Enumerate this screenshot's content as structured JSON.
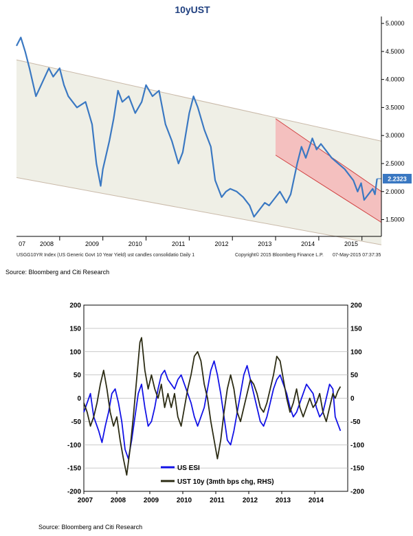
{
  "chart_data": [
    {
      "type": "line",
      "title": "10yUST",
      "y_axis_side": "right",
      "ylim": [
        1.2,
        5.05
      ],
      "yticks": [
        "5.0000",
        "4.5000",
        "4.0000",
        "3.5000",
        "3.0000",
        "2.5000",
        "2.0000",
        "1.5000"
      ],
      "ytick_values": [
        5.0,
        4.5,
        4.0,
        3.5,
        3.0,
        2.5,
        2.0,
        1.5
      ],
      "xlim": [
        2007.0,
        2015.45
      ],
      "xticks": [
        "07",
        "2008",
        "2009",
        "2010",
        "2011",
        "2012",
        "2013",
        "2014",
        "2015"
      ],
      "xtick_values": [
        2007.05,
        2007.7,
        2008.75,
        2009.75,
        2010.75,
        2011.75,
        2012.75,
        2013.75,
        2014.75
      ],
      "last_value_label": "2.2323",
      "series": [
        {
          "values": [
            [
              2007.0,
              4.6
            ],
            [
              2007.1,
              4.75
            ],
            [
              2007.2,
              4.5
            ],
            [
              2007.3,
              4.2
            ],
            [
              2007.45,
              3.7
            ],
            [
              2007.6,
              3.95
            ],
            [
              2007.75,
              4.2
            ],
            [
              2007.85,
              4.05
            ],
            [
              2008.0,
              4.2
            ],
            [
              2008.1,
              3.9
            ],
            [
              2008.2,
              3.7
            ],
            [
              2008.4,
              3.5
            ],
            [
              2008.6,
              3.6
            ],
            [
              2008.75,
              3.2
            ],
            [
              2008.85,
              2.5
            ],
            [
              2008.95,
              2.1
            ],
            [
              2009.0,
              2.4
            ],
            [
              2009.15,
              2.9
            ],
            [
              2009.25,
              3.3
            ],
            [
              2009.35,
              3.8
            ],
            [
              2009.45,
              3.6
            ],
            [
              2009.6,
              3.7
            ],
            [
              2009.75,
              3.4
            ],
            [
              2009.9,
              3.6
            ],
            [
              2010.0,
              3.9
            ],
            [
              2010.15,
              3.7
            ],
            [
              2010.3,
              3.8
            ],
            [
              2010.45,
              3.2
            ],
            [
              2010.6,
              2.9
            ],
            [
              2010.75,
              2.5
            ],
            [
              2010.85,
              2.7
            ],
            [
              2011.0,
              3.4
            ],
            [
              2011.1,
              3.7
            ],
            [
              2011.2,
              3.5
            ],
            [
              2011.35,
              3.1
            ],
            [
              2011.5,
              2.8
            ],
            [
              2011.6,
              2.2
            ],
            [
              2011.75,
              1.9
            ],
            [
              2011.85,
              2.0
            ],
            [
              2011.95,
              2.05
            ],
            [
              2012.1,
              2.0
            ],
            [
              2012.25,
              1.9
            ],
            [
              2012.4,
              1.75
            ],
            [
              2012.5,
              1.55
            ],
            [
              2012.6,
              1.65
            ],
            [
              2012.75,
              1.8
            ],
            [
              2012.85,
              1.75
            ],
            [
              2012.95,
              1.85
            ],
            [
              2013.1,
              2.0
            ],
            [
              2013.25,
              1.8
            ],
            [
              2013.35,
              1.95
            ],
            [
              2013.5,
              2.5
            ],
            [
              2013.6,
              2.8
            ],
            [
              2013.7,
              2.6
            ],
            [
              2013.85,
              2.95
            ],
            [
              2013.95,
              2.75
            ],
            [
              2014.05,
              2.85
            ],
            [
              2014.15,
              2.75
            ],
            [
              2014.3,
              2.6
            ],
            [
              2014.45,
              2.5
            ],
            [
              2014.6,
              2.4
            ],
            [
              2014.7,
              2.3
            ],
            [
              2014.8,
              2.2
            ],
            [
              2014.9,
              2.0
            ],
            [
              2014.98,
              2.15
            ],
            [
              2015.05,
              1.85
            ],
            [
              2015.15,
              1.95
            ],
            [
              2015.25,
              2.05
            ],
            [
              2015.3,
              1.95
            ],
            [
              2015.35,
              2.23
            ]
          ]
        }
      ],
      "channels": [
        {
          "upper": [
            [
              2007.0,
              4.35
            ],
            [
              2015.45,
              2.9
            ]
          ],
          "lower": [
            [
              2007.0,
              2.25
            ],
            [
              2015.45,
              1.05
            ]
          ],
          "color": "#efefe6"
        },
        {
          "upper": [
            [
              2013.0,
              3.3
            ],
            [
              2015.45,
              2.0
            ]
          ],
          "lower": [
            [
              2013.0,
              2.65
            ],
            [
              2015.45,
              1.45
            ]
          ],
          "color": "#f4b7b7"
        }
      ],
      "footer_left": "USGG10YR Index (US Generic Govt 10 Year Yield) ust candles consolidatio  Daily 1",
      "footer_mid": "Copyright© 2015 Bloomberg Finance L.P.",
      "footer_right": "07-May-2015 07:37:35",
      "source": "Source: Bloomberg and Citi Research"
    },
    {
      "type": "line",
      "title": "",
      "ylim": [
        -200,
        200
      ],
      "yticks": [
        "200",
        "150",
        "100",
        "50",
        "0",
        "-50",
        "-100",
        "-150",
        "-200"
      ],
      "ytick_values": [
        200,
        150,
        100,
        50,
        0,
        -50,
        -100,
        -150,
        -200
      ],
      "xlim": [
        2007.0,
        2015.0
      ],
      "xticks": [
        "2007",
        "2008",
        "2009",
        "2010",
        "2011",
        "2012",
        "2013",
        "2014"
      ],
      "xtick_values": [
        2007,
        2008,
        2009,
        2010,
        2011,
        2012,
        2013,
        2014
      ],
      "legend": "inside-bottom-left",
      "grid": true,
      "series": [
        {
          "name": "US ESI",
          "color": "#1212e6",
          "values": [
            [
              2007.0,
              -30
            ],
            [
              2007.1,
              -10
            ],
            [
              2007.2,
              10
            ],
            [
              2007.3,
              -40
            ],
            [
              2007.45,
              -70
            ],
            [
              2007.55,
              -95
            ],
            [
              2007.65,
              -60
            ],
            [
              2007.75,
              -30
            ],
            [
              2007.85,
              10
            ],
            [
              2007.95,
              20
            ],
            [
              2008.05,
              -10
            ],
            [
              2008.15,
              -50
            ],
            [
              2008.25,
              -110
            ],
            [
              2008.35,
              -130
            ],
            [
              2008.45,
              -90
            ],
            [
              2008.55,
              -40
            ],
            [
              2008.65,
              10
            ],
            [
              2008.75,
              30
            ],
            [
              2008.85,
              -20
            ],
            [
              2008.95,
              -60
            ],
            [
              2009.05,
              -50
            ],
            [
              2009.15,
              -20
            ],
            [
              2009.25,
              20
            ],
            [
              2009.35,
              50
            ],
            [
              2009.45,
              60
            ],
            [
              2009.55,
              40
            ],
            [
              2009.65,
              30
            ],
            [
              2009.75,
              20
            ],
            [
              2009.85,
              40
            ],
            [
              2009.95,
              50
            ],
            [
              2010.05,
              30
            ],
            [
              2010.15,
              10
            ],
            [
              2010.25,
              -10
            ],
            [
              2010.35,
              -40
            ],
            [
              2010.45,
              -60
            ],
            [
              2010.55,
              -40
            ],
            [
              2010.65,
              -20
            ],
            [
              2010.75,
              20
            ],
            [
              2010.85,
              60
            ],
            [
              2010.95,
              80
            ],
            [
              2011.05,
              50
            ],
            [
              2011.15,
              10
            ],
            [
              2011.25,
              -40
            ],
            [
              2011.35,
              -90
            ],
            [
              2011.45,
              -100
            ],
            [
              2011.55,
              -70
            ],
            [
              2011.65,
              -30
            ],
            [
              2011.75,
              10
            ],
            [
              2011.85,
              50
            ],
            [
              2011.95,
              70
            ],
            [
              2012.05,
              40
            ],
            [
              2012.15,
              10
            ],
            [
              2012.25,
              -20
            ],
            [
              2012.35,
              -50
            ],
            [
              2012.45,
              -60
            ],
            [
              2012.55,
              -40
            ],
            [
              2012.65,
              -10
            ],
            [
              2012.75,
              20
            ],
            [
              2012.85,
              40
            ],
            [
              2012.95,
              50
            ],
            [
              2013.05,
              30
            ],
            [
              2013.15,
              10
            ],
            [
              2013.25,
              -20
            ],
            [
              2013.35,
              -40
            ],
            [
              2013.45,
              -30
            ],
            [
              2013.55,
              -10
            ],
            [
              2013.65,
              10
            ],
            [
              2013.75,
              30
            ],
            [
              2013.85,
              20
            ],
            [
              2013.95,
              10
            ],
            [
              2014.05,
              -20
            ],
            [
              2014.15,
              -40
            ],
            [
              2014.25,
              -30
            ],
            [
              2014.35,
              0
            ],
            [
              2014.45,
              30
            ],
            [
              2014.55,
              20
            ],
            [
              2014.62,
              -40
            ],
            [
              2014.7,
              -55
            ],
            [
              2014.78,
              -70
            ]
          ]
        },
        {
          "name": "UST 10y (3mth bps chg, RHS)",
          "color": "#2c2c14",
          "values": [
            [
              2007.0,
              -10
            ],
            [
              2007.1,
              -30
            ],
            [
              2007.2,
              -60
            ],
            [
              2007.3,
              -40
            ],
            [
              2007.4,
              -10
            ],
            [
              2007.5,
              30
            ],
            [
              2007.6,
              60
            ],
            [
              2007.7,
              20
            ],
            [
              2007.8,
              -30
            ],
            [
              2007.9,
              -60
            ],
            [
              2008.0,
              -40
            ],
            [
              2008.1,
              -90
            ],
            [
              2008.2,
              -130
            ],
            [
              2008.3,
              -165
            ],
            [
              2008.4,
              -110
            ],
            [
              2008.5,
              -40
            ],
            [
              2008.6,
              40
            ],
            [
              2008.7,
              120
            ],
            [
              2008.75,
              130
            ],
            [
              2008.85,
              60
            ],
            [
              2008.95,
              20
            ],
            [
              2009.05,
              50
            ],
            [
              2009.15,
              20
            ],
            [
              2009.25,
              0
            ],
            [
              2009.35,
              30
            ],
            [
              2009.45,
              -20
            ],
            [
              2009.55,
              10
            ],
            [
              2009.65,
              -20
            ],
            [
              2009.75,
              10
            ],
            [
              2009.85,
              -40
            ],
            [
              2009.95,
              -60
            ],
            [
              2010.05,
              -20
            ],
            [
              2010.15,
              20
            ],
            [
              2010.25,
              50
            ],
            [
              2010.35,
              90
            ],
            [
              2010.45,
              100
            ],
            [
              2010.55,
              80
            ],
            [
              2010.65,
              30
            ],
            [
              2010.75,
              0
            ],
            [
              2010.85,
              -50
            ],
            [
              2010.95,
              -90
            ],
            [
              2011.05,
              -130
            ],
            [
              2011.15,
              -90
            ],
            [
              2011.25,
              -30
            ],
            [
              2011.35,
              20
            ],
            [
              2011.45,
              50
            ],
            [
              2011.55,
              20
            ],
            [
              2011.65,
              -30
            ],
            [
              2011.75,
              -50
            ],
            [
              2011.85,
              -20
            ],
            [
              2011.95,
              10
            ],
            [
              2012.05,
              40
            ],
            [
              2012.15,
              30
            ],
            [
              2012.25,
              10
            ],
            [
              2012.35,
              -20
            ],
            [
              2012.45,
              -30
            ],
            [
              2012.55,
              -10
            ],
            [
              2012.65,
              20
            ],
            [
              2012.75,
              50
            ],
            [
              2012.85,
              90
            ],
            [
              2012.95,
              80
            ],
            [
              2013.05,
              40
            ],
            [
              2013.15,
              0
            ],
            [
              2013.25,
              -30
            ],
            [
              2013.35,
              -10
            ],
            [
              2013.45,
              20
            ],
            [
              2013.55,
              -20
            ],
            [
              2013.65,
              -40
            ],
            [
              2013.75,
              -20
            ],
            [
              2013.85,
              0
            ],
            [
              2013.95,
              -20
            ],
            [
              2014.05,
              -10
            ],
            [
              2014.15,
              10
            ],
            [
              2014.25,
              -30
            ],
            [
              2014.35,
              -50
            ],
            [
              2014.45,
              -20
            ],
            [
              2014.55,
              10
            ],
            [
              2014.62,
              0
            ],
            [
              2014.7,
              15
            ],
            [
              2014.78,
              25
            ]
          ]
        }
      ],
      "source": "Source: Bloomberg and Citi Research"
    }
  ]
}
